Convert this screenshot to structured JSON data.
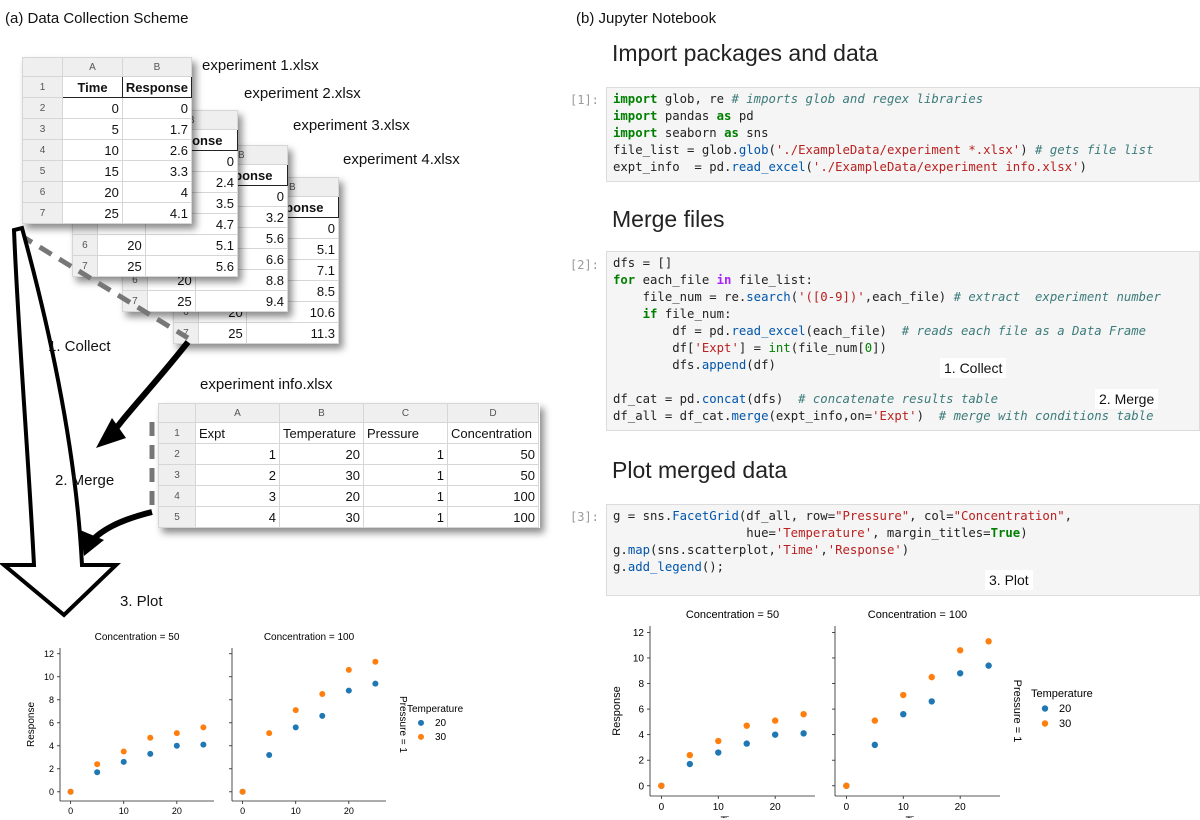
{
  "panel_a_title": "(a) Data Collection Scheme",
  "panel_b_title": "(b) Jupyter Notebook",
  "sheets": {
    "files": [
      "experiment 1.xlsx",
      "experiment 2.xlsx",
      "experiment 3.xlsx",
      "experiment 4.xlsx"
    ],
    "col_letters": [
      "A",
      "B"
    ],
    "headers": [
      "Time",
      "Response"
    ],
    "row_numbers": [
      "1",
      "2",
      "3",
      "4",
      "5",
      "6",
      "7"
    ],
    "times": [
      "0",
      "5",
      "10",
      "15",
      "20",
      "25"
    ],
    "exp1_response": [
      "0",
      "1.7",
      "2.6",
      "3.3",
      "4",
      "4.1"
    ],
    "exp2_response": [
      "0",
      "2.4",
      "3.5",
      "4.7",
      "5.1",
      "5.6"
    ],
    "exp3_response": [
      "0",
      "3.2",
      "5.6",
      "6.6",
      "8.8",
      "9.4"
    ],
    "exp4_response": [
      "0",
      "5.1",
      "7.1",
      "8.5",
      "10.6",
      "11.3"
    ]
  },
  "info_sheet": {
    "filename": "experiment info.xlsx",
    "col_letters": [
      "A",
      "B",
      "C",
      "D"
    ],
    "headers": [
      "Expt",
      "Temperature",
      "Pressure",
      "Concentration"
    ],
    "row_numbers": [
      "1",
      "2",
      "3",
      "4",
      "5"
    ],
    "rows": [
      [
        "1",
        "20",
        "1",
        "50"
      ],
      [
        "2",
        "30",
        "1",
        "50"
      ],
      [
        "3",
        "20",
        "1",
        "100"
      ],
      [
        "4",
        "30",
        "1",
        "100"
      ]
    ]
  },
  "steps": {
    "collect": "1. Collect",
    "merge": "2. Merge",
    "plot": "3. Plot"
  },
  "notebook": {
    "h1": "Import packages and data",
    "h2": "Merge files",
    "h3": "Plot merged data",
    "p1": "[1]:",
    "p2": "[2]:",
    "p3": "[3]:"
  },
  "plot_labels": {
    "title_left": "Concentration = 50",
    "title_right": "Concentration = 100",
    "xlabel": "Time",
    "ylabel": "Response",
    "row_label": "Pressure = 1",
    "legend_title": "Temperature",
    "legend_items": [
      "20",
      "30"
    ],
    "x_ticks": [
      "0",
      "10",
      "20"
    ],
    "y_ticks": [
      "0",
      "2",
      "4",
      "6",
      "8",
      "10",
      "12"
    ]
  },
  "chart_data": {
    "type": "scatter",
    "facets": [
      {
        "title": "Concentration = 50",
        "series": [
          {
            "name": "20",
            "x": [
              0,
              5,
              10,
              15,
              20,
              25
            ],
            "y": [
              0,
              1.7,
              2.6,
              3.3,
              4,
              4.1
            ]
          },
          {
            "name": "30",
            "x": [
              0,
              5,
              10,
              15,
              20,
              25
            ],
            "y": [
              0,
              2.4,
              3.5,
              4.7,
              5.1,
              5.6
            ]
          }
        ]
      },
      {
        "title": "Concentration = 100",
        "series": [
          {
            "name": "20",
            "x": [
              0,
              5,
              10,
              15,
              20,
              25
            ],
            "y": [
              0,
              3.2,
              5.6,
              6.6,
              8.8,
              9.4
            ]
          },
          {
            "name": "30",
            "x": [
              0,
              5,
              10,
              15,
              20,
              25
            ],
            "y": [
              0,
              5.1,
              7.1,
              8.5,
              10.6,
              11.3
            ]
          }
        ]
      }
    ],
    "xlabel": "Time",
    "ylabel": "Response",
    "xlim": [
      -2,
      27
    ],
    "ylim": [
      -0.8,
      12.5
    ],
    "legend_title": "Temperature",
    "legend_placement": "right",
    "colors": {
      "20": "#1f77b4",
      "30": "#ff7f0e"
    }
  }
}
